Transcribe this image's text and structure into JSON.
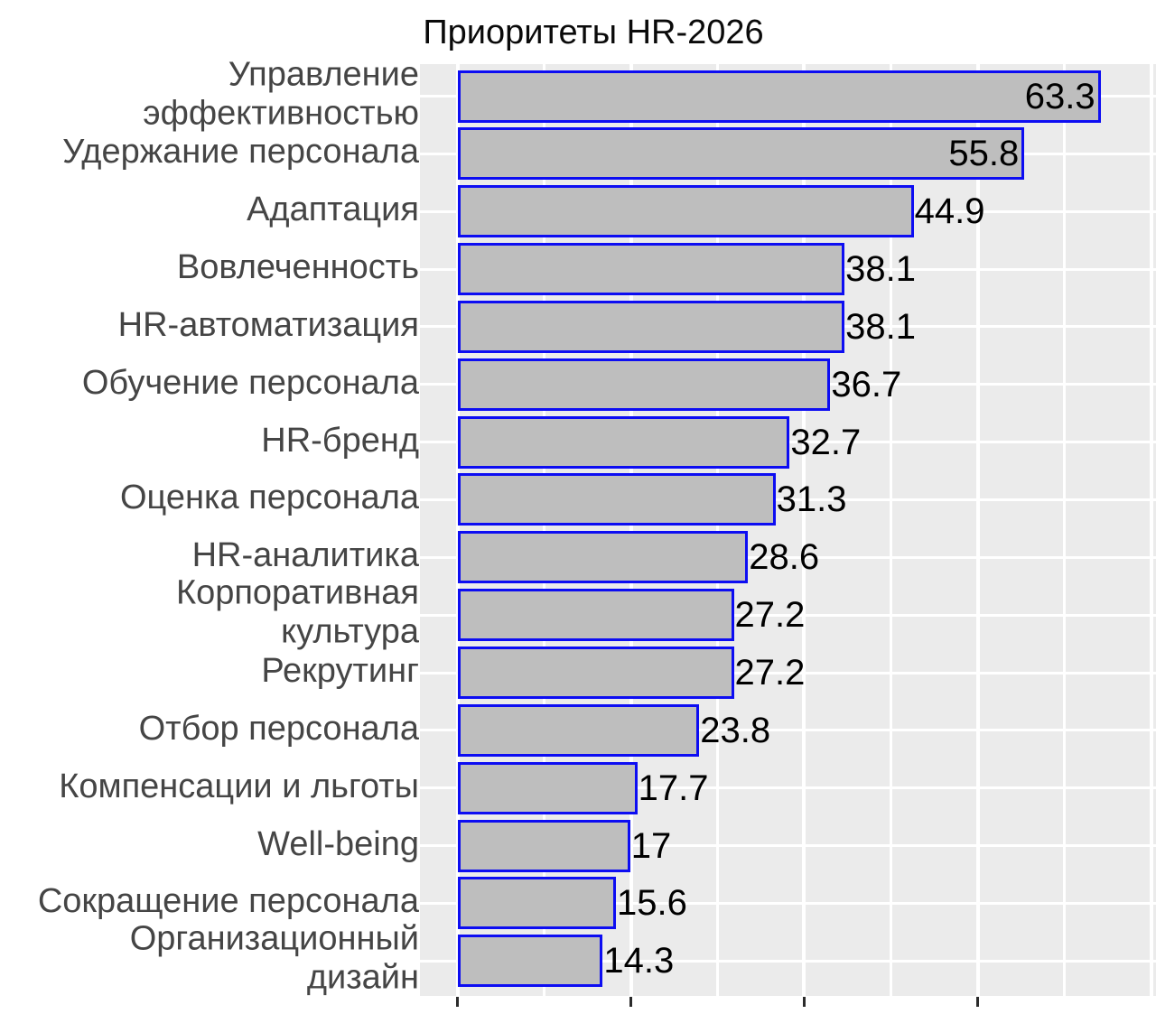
{
  "page": {
    "title": "Приоритеты HR-2026"
  },
  "chart_data": {
    "type": "bar",
    "orientation": "horizontal",
    "title": "Приоритеты HR-2026",
    "categories": [
      "Управление\nэффективностью",
      "Удержание персонала",
      "Адаптация",
      "Вовлеченность",
      "HR-автоматизация",
      "Обучение персонала",
      "HR-бренд",
      "Оценка персонала",
      "HR-аналитика",
      "Корпоративная\nкультура",
      "Рекрутинг",
      "Отбор персонала",
      "Компенсации и льготы",
      "Well-being",
      "Сокращение персонала",
      "Организационный\nдизайн"
    ],
    "values": [
      63.3,
      55.8,
      44.9,
      38.1,
      38.1,
      36.7,
      32.7,
      31.3,
      28.6,
      27.2,
      27.2,
      23.8,
      17.7,
      17,
      15.6,
      14.3
    ],
    "value_labels": [
      "63.3",
      "55.8",
      "44.9",
      "38.1",
      "38.1",
      "36.7",
      "32.7",
      "31.3",
      "28.6",
      "27.2",
      "27.2",
      "23.8",
      "17.7",
      "17",
      "15.6",
      "14.3"
    ],
    "value_label_inside": [
      true,
      true,
      false,
      false,
      false,
      false,
      false,
      false,
      false,
      false,
      false,
      false,
      false,
      false,
      false,
      false
    ],
    "xlabel": "",
    "ylabel": "",
    "xlim": [
      -3.7,
      68.8
    ],
    "x_major_gridlines": [
      0,
      17.07,
      34.13,
      51.2,
      68.27
    ],
    "x_minor_gridlines": [
      8.53,
      25.6,
      42.67,
      59.73
    ],
    "x_axis_ticks": [
      0,
      17.07,
      34.13,
      51.2
    ],
    "x_tick_labels": [],
    "grid": true,
    "legend": false,
    "colors": {
      "bar_fill": "#bebebe",
      "bar_border": "#0d0df2",
      "panel_bg": "#ebebeb",
      "gridline": "#ffffff",
      "category_label": "#454545",
      "value_label": "#000000",
      "title": "#0a0a0a",
      "tick": "#2b2b2b",
      "background": "#ffffff"
    }
  }
}
